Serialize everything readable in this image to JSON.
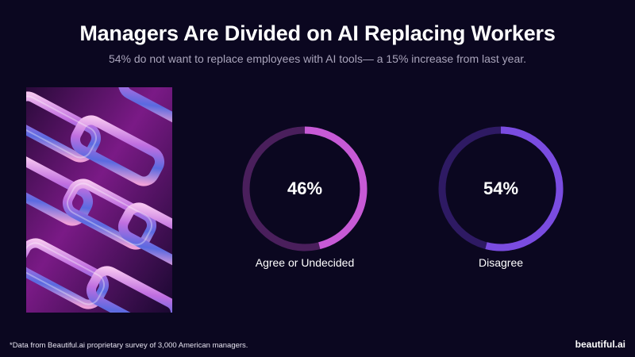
{
  "header": {
    "title": "Managers Are Divided on AI Replacing Workers",
    "subtitle": "54% do not want to replace employees with AI tools— a 15% increase from last year."
  },
  "chart_data": {
    "type": "pie",
    "style": "donut",
    "series": [
      {
        "name": "Agree or Undecided",
        "value": 46,
        "display": "46%",
        "color": "#c75ad6",
        "track_color": "#4a1f5c"
      },
      {
        "name": "Disagree",
        "value": 54,
        "display": "54%",
        "color": "#7a4ce0",
        "track_color": "#2e1a63"
      }
    ]
  },
  "colors": {
    "background": "#0b0720",
    "subtitle": "#a9a4bb"
  },
  "footer": {
    "footnote": "*Data from Beautiful.ai proprietary survey of 3,000 American managers.",
    "brand": "beautiful.ai"
  }
}
